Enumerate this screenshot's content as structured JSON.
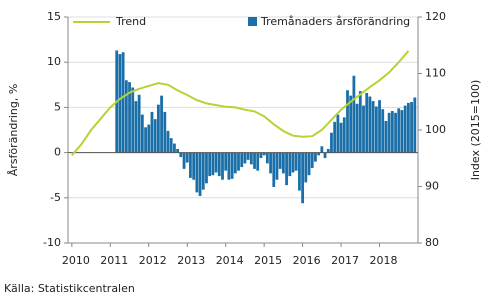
{
  "chart_data": {
    "type": "bar-line",
    "ylabel": "Årsförändring, %",
    "y2label": "Index (2015=100)",
    "source": "Källa: Statistikcentralen",
    "xlim": [
      2009.9,
      2019.0
    ],
    "xticks": [
      2010,
      2011,
      2012,
      2013,
      2014,
      2015,
      2016,
      2017,
      2018
    ],
    "ylim": [
      -10,
      15
    ],
    "yticks": [
      -10,
      -5,
      0,
      5,
      10,
      15
    ],
    "y2lim": [
      80,
      120
    ],
    "y2ticks": [
      80,
      90,
      100,
      110,
      120
    ],
    "grid": true,
    "series": [
      {
        "name": "Trend",
        "type": "line",
        "axis": "y2",
        "color": "#b5d334",
        "x": [
          2010.0,
          2010.25,
          2010.5,
          2010.75,
          2011.0,
          2011.25,
          2011.5,
          2011.75,
          2012.0,
          2012.25,
          2012.5,
          2012.75,
          2013.0,
          2013.25,
          2013.5,
          2013.75,
          2014.0,
          2014.25,
          2014.5,
          2014.75,
          2015.0,
          2015.25,
          2015.5,
          2015.75,
          2016.0,
          2016.25,
          2016.5,
          2016.75,
          2017.0,
          2017.25,
          2017.5,
          2017.75,
          2018.0,
          2018.25,
          2018.5,
          2018.75
        ],
        "values": [
          95.5,
          97.5,
          100.0,
          102.0,
          104.0,
          105.5,
          106.6,
          107.3,
          107.8,
          108.3,
          108.0,
          107.0,
          106.2,
          105.3,
          104.7,
          104.4,
          104.1,
          104.0,
          103.6,
          103.3,
          102.4,
          101.0,
          99.8,
          99.0,
          98.8,
          98.9,
          100.0,
          101.8,
          103.6,
          105.0,
          106.3,
          107.6,
          108.8,
          110.2,
          112.0,
          114.0
        ]
      },
      {
        "name": "Tremånaders årsförändring",
        "type": "bar",
        "color": "#1b6fa8",
        "x": [
          2011.167,
          2011.25,
          2011.333,
          2011.417,
          2011.5,
          2011.583,
          2011.667,
          2011.75,
          2011.833,
          2011.917,
          2012.0,
          2012.083,
          2012.167,
          2012.25,
          2012.333,
          2012.417,
          2012.5,
          2012.583,
          2012.667,
          2012.75,
          2012.833,
          2012.917,
          2013.0,
          2013.083,
          2013.167,
          2013.25,
          2013.333,
          2013.417,
          2013.5,
          2013.583,
          2013.667,
          2013.75,
          2013.833,
          2013.917,
          2014.0,
          2014.083,
          2014.167,
          2014.25,
          2014.333,
          2014.417,
          2014.5,
          2014.583,
          2014.667,
          2014.75,
          2014.833,
          2014.917,
          2015.0,
          2015.083,
          2015.167,
          2015.25,
          2015.333,
          2015.417,
          2015.5,
          2015.583,
          2015.667,
          2015.75,
          2015.833,
          2015.917,
          2016.0,
          2016.083,
          2016.167,
          2016.25,
          2016.333,
          2016.417,
          2016.5,
          2016.583,
          2016.667,
          2016.75,
          2016.833,
          2016.917,
          2017.0,
          2017.083,
          2017.167,
          2017.25,
          2017.333,
          2017.417,
          2017.5,
          2017.583,
          2017.667,
          2017.75,
          2017.833,
          2017.917,
          2018.0,
          2018.083,
          2018.167,
          2018.25,
          2018.333,
          2018.417,
          2018.5,
          2018.583,
          2018.667,
          2018.75,
          2018.833,
          2018.917
        ],
        "values": [
          11.3,
          10.9,
          11.1,
          8.0,
          7.8,
          7.2,
          5.7,
          6.4,
          4.2,
          2.8,
          3.1,
          4.5,
          3.7,
          5.3,
          6.3,
          4.5,
          2.4,
          1.6,
          1.0,
          0.4,
          -0.5,
          -1.8,
          -1.1,
          -2.8,
          -3.0,
          -4.4,
          -4.8,
          -4.1,
          -3.4,
          -2.6,
          -2.5,
          -2.2,
          -2.6,
          -3.0,
          -2.0,
          -3.0,
          -2.9,
          -2.3,
          -2.0,
          -1.6,
          -1.2,
          -0.8,
          -1.3,
          -1.8,
          -2.0,
          -0.6,
          -0.3,
          -1.2,
          -2.3,
          -3.8,
          -3.0,
          -1.8,
          -2.3,
          -3.6,
          -2.6,
          -2.2,
          -2.0,
          -4.2,
          -5.6,
          -3.3,
          -2.5,
          -1.7,
          -1.0,
          -0.3,
          0.7,
          -0.6,
          0.4,
          2.2,
          3.4,
          4.2,
          3.3,
          3.9,
          6.9,
          6.3,
          8.5,
          5.4,
          6.8,
          5.2,
          6.6,
          6.2,
          5.7,
          5.1,
          5.8,
          4.8,
          3.5,
          4.4,
          4.6,
          4.4,
          4.9,
          4.7,
          5.2,
          5.5,
          5.6,
          6.1
        ]
      }
    ]
  }
}
